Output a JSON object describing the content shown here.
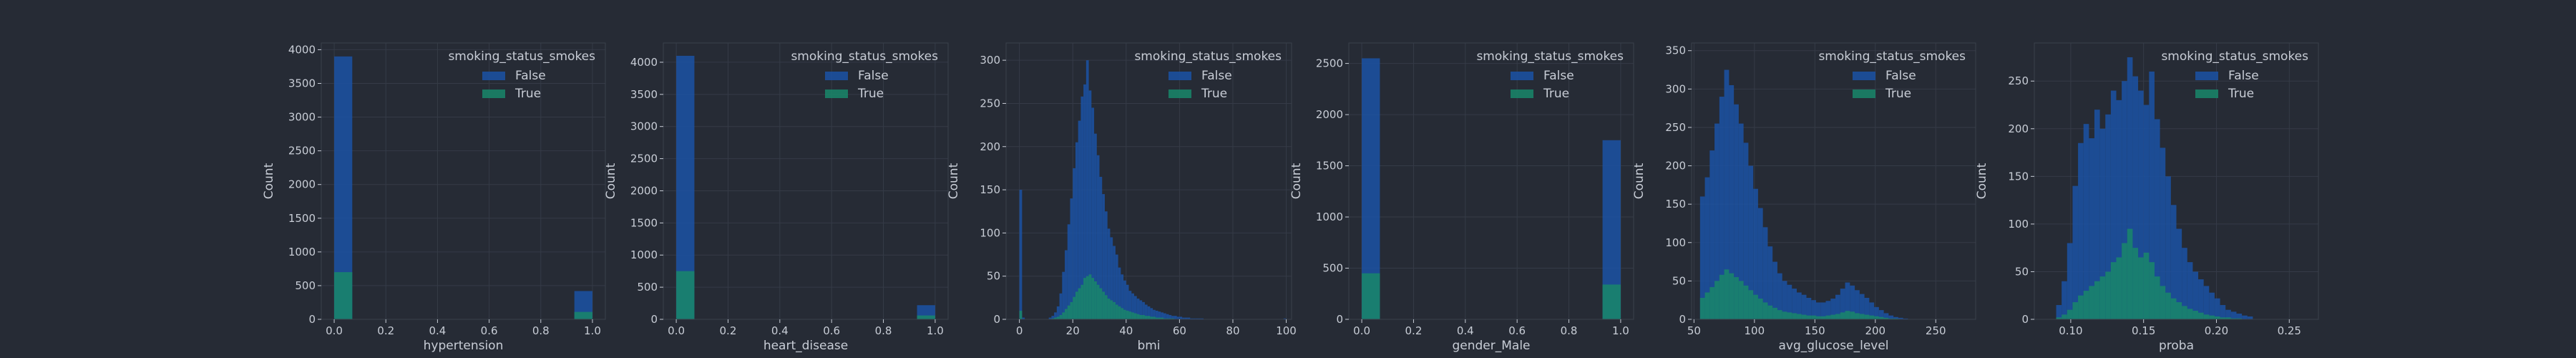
{
  "figure": {
    "colors": {
      "background": "#262b35",
      "grid": "#353b47",
      "spine": "#3a404c",
      "text": "#c8cdd6"
    },
    "legend_title": "smoking_status_smokes",
    "legend_labels": [
      "False",
      "True"
    ]
  },
  "chart_data": [
    {
      "type": "histogram",
      "xlabel": "hypertension",
      "ylabel": "Count",
      "xlim": [
        -0.05,
        1.05
      ],
      "ylim": [
        0,
        4100
      ],
      "xticks": [
        0.0,
        0.2,
        0.4,
        0.6,
        0.8,
        1.0
      ],
      "xtick_labels": [
        "0.0",
        "0.2",
        "0.4",
        "0.6",
        "0.8",
        "1.0"
      ],
      "yticks": [
        0,
        500,
        1000,
        1500,
        2000,
        2500,
        3000,
        3500,
        4000
      ],
      "ytick_labels": [
        "0",
        "500",
        "1000",
        "1500",
        "2000",
        "2500",
        "3000",
        "3500",
        "4000"
      ],
      "legend_position": "top-right",
      "grid": true,
      "series": [
        {
          "name": "False",
          "color": "#1b52a5",
          "bins": [
            [
              0.0,
              0.07,
              3900
            ],
            [
              0.93,
              1.0,
              420
            ]
          ]
        },
        {
          "name": "True",
          "color": "#19876a",
          "bins": [
            [
              0.0,
              0.07,
              700
            ],
            [
              0.93,
              1.0,
              110
            ]
          ]
        }
      ]
    },
    {
      "type": "histogram",
      "xlabel": "heart_disease",
      "ylabel": "Count",
      "xlim": [
        -0.05,
        1.05
      ],
      "ylim": [
        0,
        4300
      ],
      "xticks": [
        0.0,
        0.2,
        0.4,
        0.6,
        0.8,
        1.0
      ],
      "xtick_labels": [
        "0.0",
        "0.2",
        "0.4",
        "0.6",
        "0.8",
        "1.0"
      ],
      "yticks": [
        0,
        500,
        1000,
        1500,
        2000,
        2500,
        3000,
        3500,
        4000
      ],
      "ytick_labels": [
        "0",
        "500",
        "1000",
        "1500",
        "2000",
        "2500",
        "3000",
        "3500",
        "4000"
      ],
      "legend_position": "top-right",
      "grid": true,
      "series": [
        {
          "name": "False",
          "color": "#1b52a5",
          "bins": [
            [
              0.0,
              0.07,
              4100
            ],
            [
              0.93,
              1.0,
              220
            ]
          ]
        },
        {
          "name": "True",
          "color": "#19876a",
          "bins": [
            [
              0.0,
              0.07,
              750
            ],
            [
              0.93,
              1.0,
              60
            ]
          ]
        }
      ]
    },
    {
      "type": "histogram",
      "xlabel": "bmi",
      "ylabel": "Count",
      "xlim": [
        -5,
        102
      ],
      "ylim": [
        0,
        320
      ],
      "xticks": [
        0,
        20,
        40,
        60,
        80,
        100
      ],
      "xtick_labels": [
        "0",
        "20",
        "40",
        "60",
        "80",
        "100"
      ],
      "yticks": [
        0,
        50,
        100,
        150,
        200,
        250,
        300
      ],
      "ytick_labels": [
        "0",
        "50",
        "100",
        "150",
        "200",
        "250",
        "300"
      ],
      "legend_position": "top-right",
      "grid": true,
      "series": [
        {
          "name": "False",
          "color": "#1b52a5",
          "hist": {
            "start": 0,
            "width": 1,
            "values": [
              150,
              2,
              0,
              0,
              0,
              0,
              0,
              0,
              0,
              0,
              0,
              2,
              4,
              8,
              15,
              30,
              55,
              80,
              110,
              140,
              175,
              205,
              230,
              258,
              272,
              300,
              265,
              245,
              215,
              190,
              165,
              145,
              125,
              105,
              95,
              85,
              75,
              60,
              52,
              45,
              40,
              33,
              30,
              27,
              24,
              22,
              20,
              17,
              15,
              13,
              11,
              10,
              9,
              8,
              7,
              6,
              5,
              4,
              4,
              3,
              3,
              2,
              2,
              2,
              1,
              1,
              1,
              1,
              1,
              0,
              0,
              0,
              0,
              0,
              0,
              0,
              0,
              0,
              0,
              0,
              0,
              0,
              0,
              0,
              0,
              0,
              0,
              0,
              0,
              0,
              0,
              0,
              0,
              0,
              0,
              0,
              0,
              0,
              0,
              1
            ]
          }
        },
        {
          "name": "True",
          "color": "#19876a",
          "hist": {
            "start": 0,
            "width": 1,
            "values": [
              10,
              0,
              0,
              0,
              0,
              0,
              0,
              0,
              0,
              0,
              0,
              0,
              1,
              2,
              3,
              5,
              8,
              12,
              16,
              20,
              26,
              32,
              36,
              40,
              48,
              50,
              52,
              48,
              44,
              40,
              36,
              32,
              28,
              24,
              22,
              20,
              17,
              15,
              13,
              11,
              10,
              9,
              8,
              7,
              6,
              5,
              5,
              4,
              4,
              3,
              3,
              2,
              2,
              2,
              1,
              1,
              1,
              1,
              0,
              0,
              0,
              0,
              0,
              0,
              0,
              0,
              0,
              0,
              0,
              0,
              0,
              0,
              0,
              0,
              0,
              0,
              0,
              0,
              0,
              0,
              0,
              0,
              0,
              0,
              0,
              0,
              0,
              0,
              0,
              0,
              0,
              0,
              0,
              0,
              0,
              0,
              0,
              0,
              0,
              0
            ]
          }
        }
      ]
    },
    {
      "type": "histogram",
      "xlabel": "gender_Male",
      "ylabel": "Count",
      "xlim": [
        -0.05,
        1.05
      ],
      "ylim": [
        0,
        2700
      ],
      "xticks": [
        0.0,
        0.2,
        0.4,
        0.6,
        0.8,
        1.0
      ],
      "xtick_labels": [
        "0.0",
        "0.2",
        "0.4",
        "0.6",
        "0.8",
        "1.0"
      ],
      "yticks": [
        0,
        500,
        1000,
        1500,
        2000,
        2500
      ],
      "ytick_labels": [
        "0",
        "500",
        "1000",
        "1500",
        "2000",
        "2500"
      ],
      "legend_position": "top-right",
      "grid": true,
      "series": [
        {
          "name": "False",
          "color": "#1b52a5",
          "bins": [
            [
              0.0,
              0.07,
              2550
            ],
            [
              0.93,
              1.0,
              1750
            ]
          ]
        },
        {
          "name": "True",
          "color": "#19876a",
          "bins": [
            [
              0.0,
              0.07,
              450
            ],
            [
              0.93,
              1.0,
              340
            ]
          ]
        }
      ]
    },
    {
      "type": "histogram",
      "xlabel": "avg_glucose_level",
      "ylabel": "Count",
      "xlim": [
        48,
        283
      ],
      "ylim": [
        0,
        360
      ],
      "xticks": [
        50,
        100,
        150,
        200,
        250
      ],
      "xtick_labels": [
        "50",
        "100",
        "150",
        "200",
        "250"
      ],
      "yticks": [
        0,
        50,
        100,
        150,
        200,
        250,
        300,
        350
      ],
      "ytick_labels": [
        "0",
        "50",
        "100",
        "150",
        "200",
        "250",
        "300",
        "350"
      ],
      "legend_position": "top-right",
      "grid": true,
      "series": [
        {
          "name": "False",
          "color": "#1b52a5",
          "hist": {
            "start": 55,
            "width": 4,
            "values": [
              160,
              185,
              220,
              255,
              290,
              325,
              305,
              280,
              255,
              230,
              200,
              170,
              145,
              120,
              95,
              75,
              60,
              50,
              45,
              40,
              35,
              32,
              28,
              25,
              22,
              22,
              24,
              27,
              32,
              40,
              48,
              44,
              38,
              33,
              28,
              22,
              16,
              12,
              8,
              5,
              3,
              2,
              1,
              0,
              0,
              0,
              0,
              0,
              0,
              0,
              0,
              0,
              0,
              0,
              0
            ]
          }
        },
        {
          "name": "True",
          "color": "#19876a",
          "hist": {
            "start": 55,
            "width": 4,
            "values": [
              28,
              35,
              42,
              50,
              58,
              65,
              60,
              55,
              50,
              44,
              38,
              32,
              27,
              22,
              18,
              15,
              12,
              10,
              9,
              8,
              7,
              6,
              5,
              5,
              4,
              4,
              5,
              6,
              7,
              9,
              11,
              10,
              8,
              7,
              6,
              5,
              4,
              3,
              2,
              1,
              1,
              0,
              0,
              0,
              0,
              0,
              0,
              0,
              0,
              0,
              0,
              0,
              0,
              0,
              0
            ]
          }
        }
      ]
    },
    {
      "type": "histogram",
      "xlabel": "proba",
      "ylabel": "Count",
      "xlim": [
        0.075,
        0.27
      ],
      "ylim": [
        0,
        290
      ],
      "xticks": [
        0.1,
        0.15,
        0.2,
        0.25
      ],
      "xtick_labels": [
        "0.10",
        "0.15",
        "0.20",
        "0.25"
      ],
      "yticks": [
        0,
        50,
        100,
        150,
        200,
        250
      ],
      "ytick_labels": [
        "0",
        "50",
        "100",
        "150",
        "200",
        "250"
      ],
      "legend_position": "top-right",
      "grid": true,
      "series": [
        {
          "name": "False",
          "color": "#1b52a5",
          "hist": {
            "start": 0.09,
            "width": 0.00375,
            "values": [
              15,
              40,
              80,
              140,
              185,
              205,
              190,
              220,
              200,
              215,
              240,
              230,
              250,
              275,
              255,
              240,
              225,
              260,
              210,
              180,
              150,
              120,
              95,
              75,
              60,
              50,
              42,
              35,
              28,
              22,
              15,
              10,
              8,
              6,
              4,
              3
            ]
          }
        },
        {
          "name": "True",
          "color": "#19876a",
          "hist": {
            "start": 0.09,
            "width": 0.00375,
            "values": [
              2,
              5,
              10,
              18,
              25,
              30,
              35,
              40,
              45,
              50,
              60,
              65,
              80,
              95,
              75,
              65,
              70,
              60,
              45,
              35,
              28,
              22,
              18,
              14,
              11,
              9,
              7,
              5,
              4,
              3,
              2,
              2,
              1,
              1,
              0,
              0
            ]
          }
        }
      ]
    }
  ]
}
